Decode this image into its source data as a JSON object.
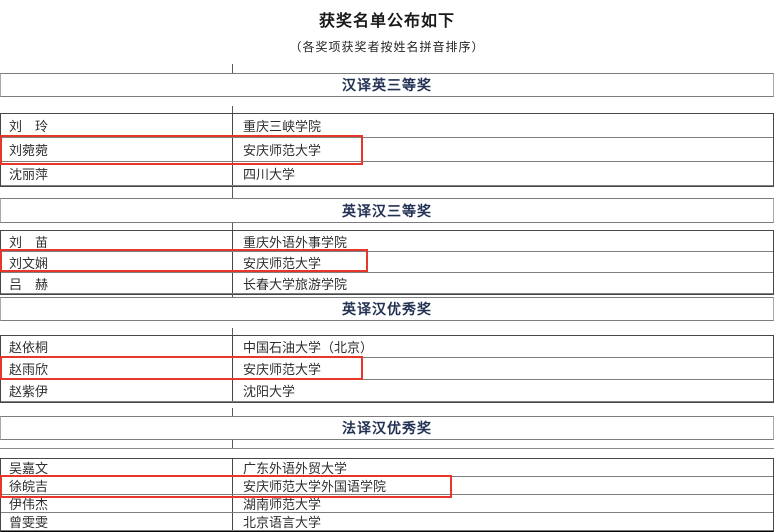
{
  "page": {
    "title": "获奖名单公布如下",
    "subtitle": "（各奖项获奖者按姓名拼音排序）"
  },
  "colors": {
    "award_header_text": "#233253",
    "highlight_box": "#e6372a",
    "body_text": "#2e2e2e"
  },
  "sections": [
    {
      "award": "汉译英三等奖",
      "rows": [
        {
          "name": "刘　玲",
          "school": "重庆三峡学院",
          "highlighted": false
        },
        {
          "name": "刘菀菀",
          "school": "安庆师范大学",
          "highlighted": true
        },
        {
          "name": "沈丽萍",
          "school": "四川大学",
          "highlighted": false
        }
      ]
    },
    {
      "award": "英译汉三等奖",
      "rows": [
        {
          "name": "刘　苗",
          "school": "重庆外语外事学院",
          "highlighted": false
        },
        {
          "name": "刘文娴",
          "school": "安庆师范大学",
          "highlighted": true
        },
        {
          "name": "吕　赫",
          "school": "长春大学旅游学院",
          "highlighted": false
        }
      ]
    },
    {
      "award": "英译汉优秀奖",
      "rows": [
        {
          "name": "赵依桐",
          "school": "中国石油大学（北京）",
          "highlighted": false
        },
        {
          "name": "赵雨欣",
          "school": "安庆师范大学",
          "highlighted": true
        },
        {
          "name": "赵紫伊",
          "school": "沈阳大学",
          "highlighted": false
        }
      ]
    },
    {
      "award": "法译汉优秀奖",
      "rows": [
        {
          "name": "吴嘉文",
          "school": "广东外语外贸大学",
          "highlighted": false
        },
        {
          "name": "徐皖吉",
          "school": "安庆师范大学外国语学院",
          "highlighted": true
        },
        {
          "name": "伊伟杰",
          "school": "湖南师范大学",
          "highlighted": false
        },
        {
          "name": "曾雯雯",
          "school": "北京语言大学",
          "highlighted": false
        }
      ]
    }
  ]
}
